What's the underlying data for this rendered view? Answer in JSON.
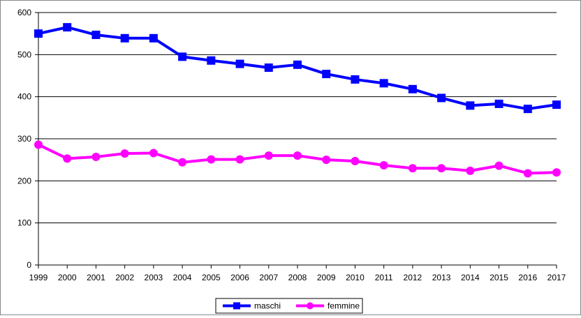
{
  "chart_data": {
    "type": "line",
    "title": "",
    "xlabel": "",
    "ylabel": "",
    "x": [
      "1999",
      "2000",
      "2001",
      "2002",
      "2003",
      "2004",
      "2005",
      "2006",
      "2007",
      "2008",
      "2009",
      "2010",
      "2011",
      "2012",
      "2013",
      "2014",
      "2015",
      "2016",
      "2017"
    ],
    "ylim": [
      0,
      600
    ],
    "yticks": [
      0,
      100,
      200,
      300,
      400,
      500,
      600
    ],
    "grid": true,
    "legend_position": "bottom",
    "series": [
      {
        "name": "maschi",
        "color": "#0000ff",
        "marker": "square",
        "values": [
          550,
          565,
          547,
          539,
          539,
          495,
          486,
          478,
          469,
          476,
          454,
          441,
          432,
          418,
          397,
          379,
          383,
          371,
          381
        ]
      },
      {
        "name": "femmine",
        "color": "#ff00ff",
        "marker": "circle",
        "values": [
          286,
          253,
          257,
          265,
          266,
          244,
          251,
          251,
          260,
          260,
          250,
          247,
          237,
          230,
          230,
          224,
          236,
          218,
          220
        ]
      }
    ]
  }
}
